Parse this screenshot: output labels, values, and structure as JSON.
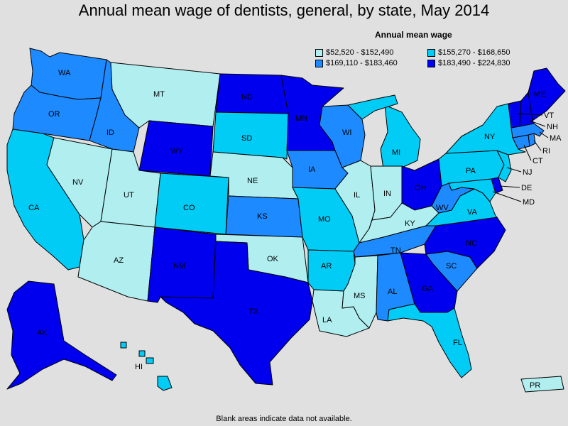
{
  "title": "Annual mean wage of dentists, general, by state, May 2014",
  "legend": {
    "title": "Annual mean wage",
    "items": [
      {
        "label": "$52,520 - $152,490",
        "color": "#b0eef0"
      },
      {
        "label": "$155,270 - $168,650",
        "color": "#00ccf5"
      },
      {
        "label": "$169,110 - $183,460",
        "color": "#1e8aff"
      },
      {
        "label": "$183,490 - $224,830",
        "color": "#0000ee"
      }
    ]
  },
  "footnote": "Blank areas indicate data not available.",
  "states": [
    {
      "abbr": "WA",
      "tier": 2
    },
    {
      "abbr": "OR",
      "tier": 2
    },
    {
      "abbr": "CA",
      "tier": 1
    },
    {
      "abbr": "NV",
      "tier": 0
    },
    {
      "abbr": "ID",
      "tier": 2
    },
    {
      "abbr": "MT",
      "tier": 0
    },
    {
      "abbr": "WY",
      "tier": 3
    },
    {
      "abbr": "UT",
      "tier": 0
    },
    {
      "abbr": "AZ",
      "tier": 0
    },
    {
      "abbr": "CO",
      "tier": 1
    },
    {
      "abbr": "NM",
      "tier": 3
    },
    {
      "abbr": "ND",
      "tier": 3
    },
    {
      "abbr": "SD",
      "tier": 1
    },
    {
      "abbr": "NE",
      "tier": 0
    },
    {
      "abbr": "KS",
      "tier": 2
    },
    {
      "abbr": "OK",
      "tier": 0
    },
    {
      "abbr": "TX",
      "tier": 3
    },
    {
      "abbr": "MN",
      "tier": 3
    },
    {
      "abbr": "IA",
      "tier": 2
    },
    {
      "abbr": "MO",
      "tier": 1
    },
    {
      "abbr": "AR",
      "tier": 1
    },
    {
      "abbr": "LA",
      "tier": 0
    },
    {
      "abbr": "WI",
      "tier": 2
    },
    {
      "abbr": "IL",
      "tier": 0
    },
    {
      "abbr": "MI",
      "tier": 1
    },
    {
      "abbr": "IN",
      "tier": 0
    },
    {
      "abbr": "OH",
      "tier": 3
    },
    {
      "abbr": "KY",
      "tier": 0
    },
    {
      "abbr": "TN",
      "tier": 2
    },
    {
      "abbr": "MS",
      "tier": 0
    },
    {
      "abbr": "AL",
      "tier": 2
    },
    {
      "abbr": "GA",
      "tier": 3
    },
    {
      "abbr": "FL",
      "tier": 1
    },
    {
      "abbr": "SC",
      "tier": 2
    },
    {
      "abbr": "NC",
      "tier": 3
    },
    {
      "abbr": "VA",
      "tier": 1
    },
    {
      "abbr": "WV",
      "tier": 2
    },
    {
      "abbr": "PA",
      "tier": 1
    },
    {
      "abbr": "NY",
      "tier": 1
    },
    {
      "abbr": "NJ",
      "tier": 1
    },
    {
      "abbr": "DE",
      "tier": 3
    },
    {
      "abbr": "MD",
      "tier": 1
    },
    {
      "abbr": "CT",
      "tier": 2
    },
    {
      "abbr": "RI",
      "tier": 2
    },
    {
      "abbr": "MA",
      "tier": 2
    },
    {
      "abbr": "VT",
      "tier": 3
    },
    {
      "abbr": "NH",
      "tier": 3
    },
    {
      "abbr": "ME",
      "tier": 3
    },
    {
      "abbr": "AK",
      "tier": 3
    },
    {
      "abbr": "HI",
      "tier": 1
    },
    {
      "abbr": "PR",
      "tier": 0
    }
  ]
}
